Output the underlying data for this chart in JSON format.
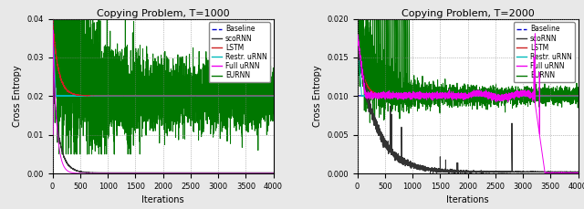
{
  "title1": "Copying Problem, T=1000",
  "title2": "Copying Problem, T=2000",
  "xlabel": "Iterations",
  "ylabel": "Cross Entropy",
  "xlim": [
    0,
    4000
  ],
  "ylim1": [
    0.0,
    0.04
  ],
  "ylim2": [
    0.0,
    0.02
  ],
  "yticks1": [
    0.0,
    0.01,
    0.02,
    0.03,
    0.04
  ],
  "yticks2": [
    0.0,
    0.005,
    0.01,
    0.015,
    0.02
  ],
  "xticks": [
    0,
    500,
    1000,
    1500,
    2000,
    2500,
    3000,
    3500,
    4000
  ],
  "baseline1": 0.0201,
  "baseline2": 0.01005,
  "colors": {
    "Baseline": "#0000cc",
    "scoRNN": "#333333",
    "LSTM": "#cc2222",
    "Restr. uRNN": "#00bbbb",
    "Full uRNN": "#ee00ee",
    "EURNN": "#007700"
  },
  "legend_labels": [
    "Baseline",
    "scoRNN",
    "LSTM",
    "Restr. uRNN",
    "Full uRNN",
    "EURNN"
  ],
  "bg_color": "#e8e8e8",
  "plot_bg": "#ffffff"
}
